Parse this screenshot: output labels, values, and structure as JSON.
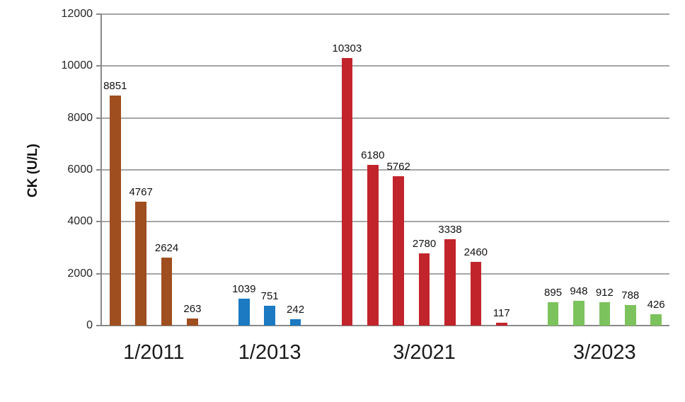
{
  "chart_data": {
    "type": "bar",
    "title": "",
    "xlabel": "",
    "ylabel": "CK (U/L)",
    "ylim": [
      0,
      12000
    ],
    "yticks": [
      0,
      2000,
      4000,
      6000,
      8000,
      10000,
      12000
    ],
    "grid": "horizontal",
    "legend": "none",
    "value_labels_shown": true,
    "groups": [
      {
        "label": "1/2011",
        "color": "#9E4E1F",
        "values": [
          8851,
          4767,
          2624,
          263
        ]
      },
      {
        "label": "1/2013",
        "color": "#1B7AC1",
        "values": [
          1039,
          751,
          242
        ]
      },
      {
        "label": "3/2021",
        "color": "#C2242C",
        "values": [
          10303,
          6180,
          5762,
          2780,
          3338,
          2460,
          117
        ]
      },
      {
        "label": "3/2023",
        "color": "#7CC35E",
        "values": [
          895,
          948,
          912,
          788,
          426
        ]
      }
    ],
    "colors_meaning": {
      "axis_line": "#898989",
      "gridline": "#a6a6a6",
      "label_text": "#111111"
    }
  }
}
